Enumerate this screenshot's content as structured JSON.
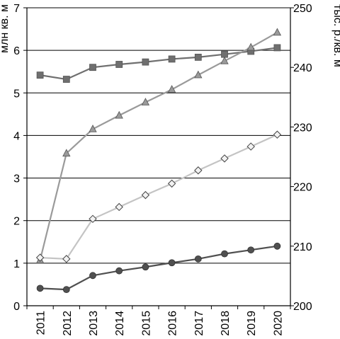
{
  "chart_data": {
    "type": "line",
    "x": [
      "2011",
      "2012",
      "2013",
      "2014",
      "2015",
      "2016",
      "2017",
      "2018",
      "2019",
      "2020"
    ],
    "y_left": {
      "label": "млн кв. м",
      "ylim": [
        0,
        7
      ],
      "ticks": [
        "0",
        "1",
        "2",
        "3",
        "4",
        "5",
        "6",
        "7"
      ]
    },
    "y_right": {
      "label": "тыс. р./кв. м",
      "ylim": [
        200,
        250
      ],
      "ticks": [
        "200",
        "210",
        "220",
        "230",
        "240",
        "250"
      ]
    },
    "grid": true,
    "series": [
      {
        "axis": "right",
        "marker": "square",
        "color": "#6f6f6f",
        "values": [
          238.7,
          238.0,
          240.0,
          240.5,
          240.9,
          241.4,
          241.7,
          242.2,
          242.7,
          243.3
        ]
      },
      {
        "axis": "left",
        "marker": "triangle",
        "color": "#9a9a9a",
        "values": [
          1.07,
          3.58,
          4.15,
          4.47,
          4.78,
          5.08,
          5.42,
          5.75,
          6.07,
          6.42
        ]
      },
      {
        "axis": "left",
        "marker": "diamond",
        "color": "#c4c4c4",
        "values": [
          1.13,
          1.1,
          2.04,
          2.32,
          2.6,
          2.87,
          3.18,
          3.46,
          3.74,
          4.02
        ]
      },
      {
        "axis": "left",
        "marker": "circle",
        "color": "#505050",
        "values": [
          0.41,
          0.38,
          0.71,
          0.82,
          0.91,
          1.01,
          1.1,
          1.22,
          1.31,
          1.4
        ]
      }
    ]
  }
}
